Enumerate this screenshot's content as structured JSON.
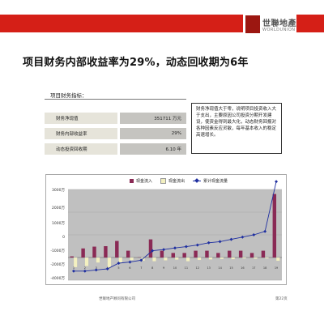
{
  "brand": {
    "name_cn": "世聯地產",
    "name_en": "WORLDUNION"
  },
  "title": "项目财务内部收益率为29%，动态回收期为6年",
  "section_label": "项目财务指标：",
  "metrics": [
    {
      "label": "财务净现值",
      "value": "351711 万元"
    },
    {
      "label": "财务内部收益率",
      "value": "29%"
    },
    {
      "label": "动态投资回收期",
      "value": "6.10 年"
    }
  ],
  "note": "财务净现值大于零，说明项目投资收入大于支出，主要原因公司投资分期开发建设，使资金得到最大化，动态财务回报对各种因素反应灵敏，每年基本收入的稳定高速增长。",
  "chart_data": {
    "type": "bar",
    "categories": [
      "1",
      "2",
      "3",
      "4",
      "5",
      "6",
      "7",
      "8",
      "9",
      "10",
      "11",
      "12",
      "13",
      "14",
      "15",
      "16",
      "17",
      "18",
      "19"
    ],
    "series": [
      {
        "name": "现金流入",
        "kind": "bar",
        "color": "#8a2a55",
        "values": [
          50,
          400,
          480,
          500,
          730,
          300,
          10,
          800,
          300,
          200,
          200,
          300,
          300,
          200,
          300,
          300,
          200,
          300,
          2800
        ]
      },
      {
        "name": "现金流出",
        "kind": "bar",
        "color": "#f3f0c0",
        "values": [
          -430,
          -380,
          -230,
          -460,
          -260,
          -120,
          -150,
          -170,
          -130,
          -100,
          -170,
          -110,
          -90,
          -70,
          -80,
          -50,
          -60,
          -50,
          -150
        ]
      },
      {
        "name": "累计现金流量",
        "kind": "line",
        "color": "#1f2fa0",
        "values": [
          -600,
          -600,
          -550,
          -500,
          -250,
          -200,
          -120,
          300,
          350,
          420,
          480,
          550,
          650,
          700,
          800,
          900,
          1000,
          1150,
          3350
        ]
      }
    ],
    "ylim": [
      -1000,
      3000
    ],
    "yticks": [
      "3000万",
      "2000万",
      "1000万",
      "0",
      "-1000万",
      "-2000万",
      "-4000万"
    ],
    "grid": true,
    "legend": "top"
  },
  "footer_left": "世联地产顾问有限公司",
  "footer_right": "第22页"
}
